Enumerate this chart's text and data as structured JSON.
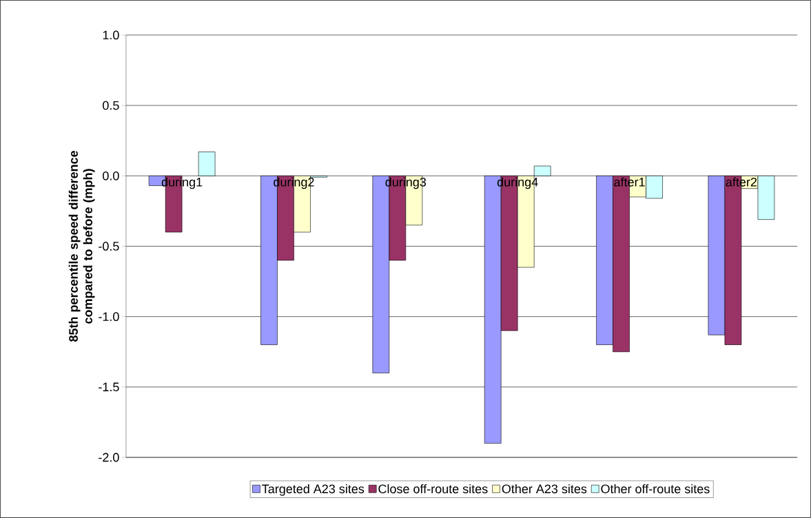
{
  "chart_data": {
    "type": "bar",
    "ylabel": "85th percentile speed difference compared to before (mph)",
    "categories": [
      "during1",
      "during2",
      "during3",
      "during4",
      "after1",
      "after2"
    ],
    "series": [
      {
        "name": "Targeted A23 sites",
        "color": "#9999ff",
        "values": [
          -0.07,
          -1.2,
          -1.4,
          -1.9,
          -1.2,
          -1.13
        ]
      },
      {
        "name": "Close off-route sites",
        "color": "#993366",
        "values": [
          -0.4,
          -0.6,
          -0.6,
          -1.1,
          -1.25,
          -1.2
        ]
      },
      {
        "name": "Other A23 sites",
        "color": "#ffffcc",
        "values": [
          null,
          -0.4,
          -0.35,
          -0.65,
          -0.15,
          -0.09
        ]
      },
      {
        "name": "Other off-route sites",
        "color": "#ccffff",
        "values": [
          0.17,
          -0.01,
          null,
          0.07,
          -0.16,
          -0.31
        ]
      }
    ],
    "ylim": [
      -2.0,
      1.0
    ],
    "yticks": [
      {
        "value": -2.0,
        "label": "-2.0"
      },
      {
        "value": -1.5,
        "label": "-1.5"
      },
      {
        "value": -1.0,
        "label": "-1.0"
      },
      {
        "value": -0.5,
        "label": "-0.5"
      },
      {
        "value": 0.0,
        "label": "0.0"
      },
      {
        "value": 0.5,
        "label": "0.5"
      },
      {
        "value": 1.0,
        "label": "1.0"
      }
    ],
    "grid": "y",
    "legend": "bottom"
  }
}
